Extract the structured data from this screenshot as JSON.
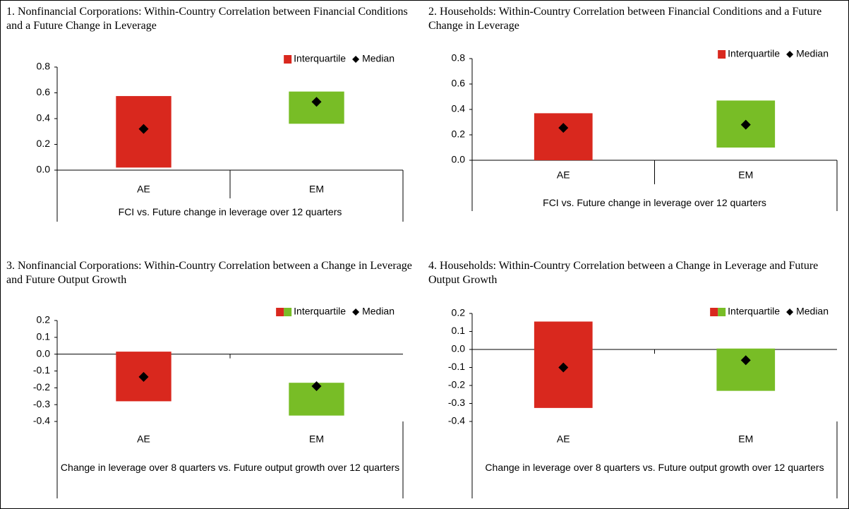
{
  "chart_data": [
    {
      "type": "range",
      "title": "1. Nonfinancial Corporations: Within-Country Correlation between Financial Conditions and a Future Change in Leverage",
      "categories": [
        "AE",
        "EM"
      ],
      "xlabel": "FCI vs. Future change in leverage over 12 quarters",
      "ylim": [
        0,
        0.8
      ],
      "yticks": [
        {
          "value": 0,
          "label": "0.0"
        },
        0.2,
        0.4,
        0.6,
        0.8
      ],
      "series": [
        {
          "name": "Interquartile",
          "colors": [
            "#d9281e",
            "#78bd26"
          ],
          "legend_colors": [
            "#d9281e"
          ],
          "low": [
            0.02,
            0.36
          ],
          "high": [
            0.575,
            0.61
          ]
        },
        {
          "name": "Median",
          "color": "#000000",
          "values": [
            0.32,
            0.53
          ]
        }
      ]
    },
    {
      "type": "range",
      "title": "2. Households: Within-Country Correlation between Financial Conditions and a Future Change in Leverage",
      "categories": [
        "AE",
        "EM"
      ],
      "xlabel": "FCI vs. Future change in leverage over 12 quarters",
      "ylim": [
        0,
        0.8
      ],
      "yticks": [
        {
          "value": 0,
          "label": "0.0"
        },
        0.2,
        0.4,
        0.6,
        0.8
      ],
      "series": [
        {
          "name": "Interquartile",
          "colors": [
            "#d9281e",
            "#78bd26"
          ],
          "legend_colors": [
            "#d9281e"
          ],
          "low": [
            0.0,
            0.1
          ],
          "high": [
            0.37,
            0.47
          ]
        },
        {
          "name": "Median",
          "color": "#000000",
          "values": [
            0.255,
            0.28
          ]
        }
      ]
    },
    {
      "type": "range",
      "title": "3. Nonfinancial Corporations: Within-Country Correlation between a Change in Leverage and Future Output Growth",
      "categories": [
        "AE",
        "EM"
      ],
      "xlabel": "Change in leverage over 8 quarters vs. Future output growth over 12 quarters",
      "ylim": [
        -0.4,
        0.2
      ],
      "yticks": [
        -0.4,
        -0.3,
        -0.2,
        -0.1,
        {
          "value": 0,
          "label": "0.0"
        },
        0.1,
        0.2
      ],
      "series": [
        {
          "name": "Interquartile",
          "colors": [
            "#d9281e",
            "#78bd26"
          ],
          "legend_colors": [
            "#d9281e",
            "#78bd26"
          ],
          "low": [
            -0.28,
            -0.365
          ],
          "high": [
            0.015,
            -0.17
          ]
        },
        {
          "name": "Median",
          "color": "#000000",
          "values": [
            -0.135,
            -0.19
          ]
        }
      ]
    },
    {
      "type": "range",
      "title": "4. Households: Within-Country Correlation between a Change in Leverage and Future Output Growth",
      "categories": [
        "AE",
        "EM"
      ],
      "xlabel": "Change in leverage over 8 quarters vs. Future output growth over 12 quarters",
      "ylim": [
        -0.4,
        0.2
      ],
      "yticks": [
        -0.4,
        -0.3,
        -0.2,
        -0.1,
        {
          "value": 0,
          "label": "0.0"
        },
        0.1,
        0.2
      ],
      "series": [
        {
          "name": "Interquartile",
          "colors": [
            "#d9281e",
            "#78bd26"
          ],
          "legend_colors": [
            "#d9281e",
            "#78bd26"
          ],
          "low": [
            -0.325,
            -0.23
          ],
          "high": [
            0.155,
            0.005
          ]
        },
        {
          "name": "Median",
          "color": "#000000",
          "values": [
            -0.1,
            -0.06
          ]
        }
      ]
    }
  ]
}
